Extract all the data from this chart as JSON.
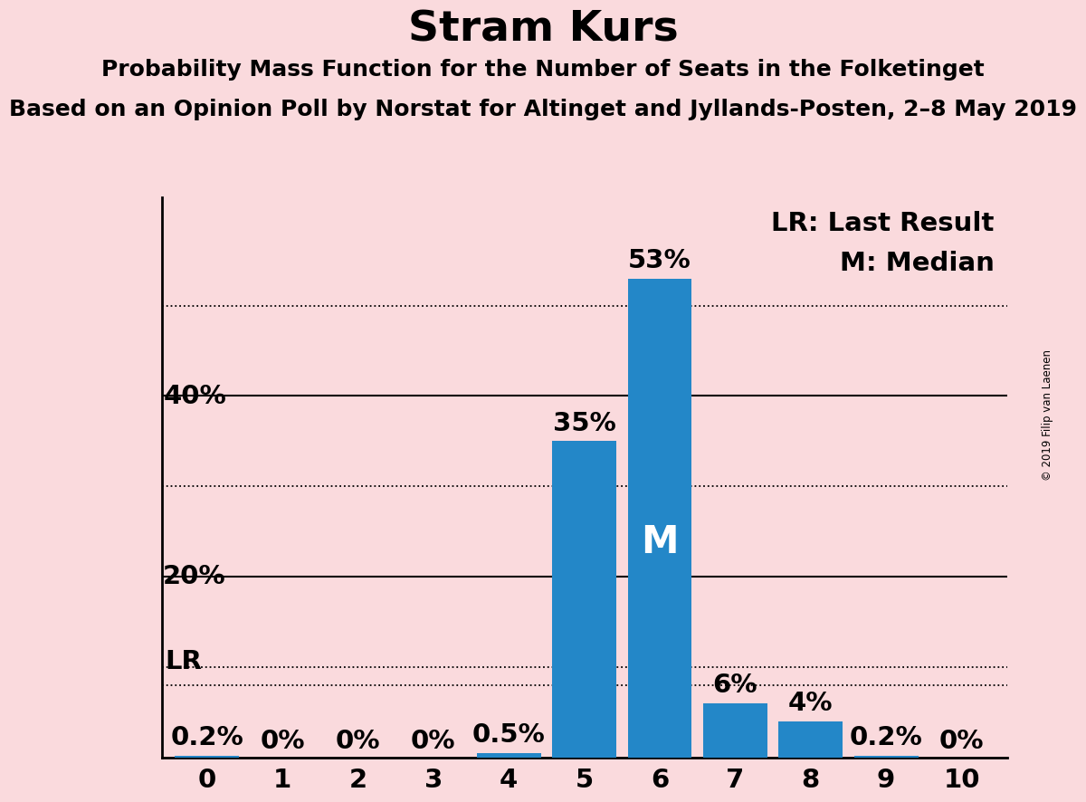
{
  "title": "Stram Kurs",
  "subtitle1": "Probability Mass Function for the Number of Seats in the Folketinget",
  "subtitle2": "Based on an Opinion Poll by Norstat for Altinget and Jyllands-Posten, 2–8 May 2019",
  "copyright": "© 2019 Filip van Laenen",
  "background_color": "#fadadd",
  "bar_color": "#2387c8",
  "categories": [
    0,
    1,
    2,
    3,
    4,
    5,
    6,
    7,
    8,
    9,
    10
  ],
  "values": [
    0.002,
    0.0,
    0.0,
    0.0,
    0.005,
    0.35,
    0.53,
    0.06,
    0.04,
    0.002,
    0.0
  ],
  "value_labels": [
    "0.2%",
    "0%",
    "0%",
    "0%",
    "0.5%",
    "35%",
    "53%",
    "6%",
    "4%",
    "0.2%",
    "0%"
  ],
  "ylim": [
    0,
    0.62
  ],
  "lr_seat": 0,
  "median_seat": 6,
  "legend_lr": "LR: Last Result",
  "legend_m": "M: Median",
  "title_fontsize": 34,
  "subtitle_fontsize": 18,
  "annotation_fontsize": 21,
  "tick_fontsize": 21,
  "ylabel_fontsize": 21,
  "solid_lines": [
    0.2,
    0.4
  ],
  "dotted_lines": [
    0.1,
    0.3,
    0.5,
    0.08
  ],
  "ytick_positions": [
    0.2,
    0.4
  ],
  "ytick_labels": [
    "20%",
    "40%"
  ]
}
